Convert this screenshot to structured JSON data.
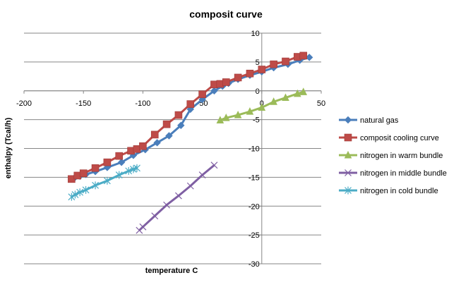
{
  "chart_data": {
    "type": "scatter",
    "title": "composit curve",
    "xlabel": "temperature C",
    "ylabel": "enthalpy (Tcal/h)",
    "xlim": [
      -200,
      50
    ],
    "ylim": [
      -30,
      10
    ],
    "xticks": [
      -200,
      -150,
      -100,
      -50,
      0,
      50
    ],
    "yticks": [
      -30,
      -25,
      -20,
      -15,
      -10,
      -5,
      0,
      5,
      10
    ],
    "grid": "horizontal",
    "legend_position": "right",
    "series": [
      {
        "name": "natural gas",
        "color": "#4a7ebb",
        "marker": "diamond",
        "x": [
          -158,
          -153,
          -148,
          -140,
          -130,
          -118,
          -108,
          -98,
          -88,
          -78,
          -68,
          -60,
          -50,
          -40,
          -33,
          -28,
          -20,
          -10,
          0,
          10,
          22,
          32,
          40
        ],
        "y": [
          -15.2,
          -14.8,
          -14.5,
          -14.0,
          -13.3,
          -12.4,
          -11.2,
          -10.2,
          -9.0,
          -7.8,
          -6.0,
          -3.2,
          -1.5,
          0.0,
          0.8,
          1.3,
          2.0,
          2.7,
          3.3,
          4.0,
          4.6,
          5.3,
          5.8
        ]
      },
      {
        "name": "composit cooling curve",
        "color": "#be4b48",
        "marker": "square",
        "x": [
          -160,
          -155,
          -150,
          -140,
          -130,
          -120,
          -110,
          -105,
          -100,
          -90,
          -80,
          -70,
          -60,
          -50,
          -40,
          -35,
          -30,
          -20,
          -10,
          0,
          10,
          20,
          30,
          35
        ],
        "y": [
          -15.3,
          -14.7,
          -14.3,
          -13.4,
          -12.4,
          -11.3,
          -10.4,
          -10.1,
          -9.6,
          -7.6,
          -5.8,
          -4.2,
          -2.3,
          -0.6,
          1.1,
          1.2,
          1.5,
          2.3,
          3.0,
          3.7,
          4.6,
          5.1,
          5.9,
          6.1
        ]
      },
      {
        "name": "nitrogen in warm bundle",
        "color": "#9bbb59",
        "marker": "triangle",
        "x": [
          -35,
          -30,
          -20,
          -10,
          0,
          10,
          20,
          30,
          35
        ],
        "y": [
          -5.1,
          -4.7,
          -4.2,
          -3.6,
          -2.9,
          -1.9,
          -1.2,
          -0.5,
          -0.2
        ]
      },
      {
        "name": "nitrogen in middle bundle",
        "color": "#7f5fa3",
        "marker": "x",
        "x": [
          -103,
          -100,
          -90,
          -80,
          -70,
          -60,
          -50,
          -40
        ],
        "y": [
          -24.2,
          -23.6,
          -21.7,
          -19.8,
          -18.2,
          -16.5,
          -14.6,
          -12.9
        ]
      },
      {
        "name": "nitrogen in cold bundle",
        "color": "#4bacc6",
        "marker": "star",
        "x": [
          -160,
          -157,
          -153,
          -148,
          -140,
          -130,
          -120,
          -112,
          -108,
          -105
        ],
        "y": [
          -18.4,
          -18.0,
          -17.6,
          -17.2,
          -16.4,
          -15.6,
          -14.6,
          -13.9,
          -13.6,
          -13.4
        ]
      }
    ]
  }
}
